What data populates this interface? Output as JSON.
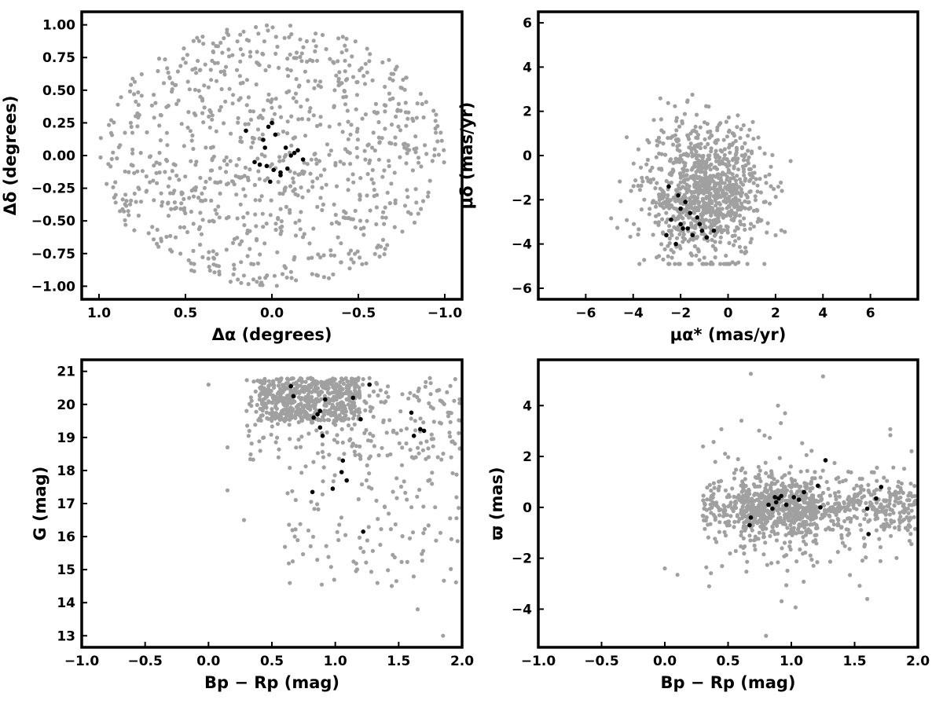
{
  "colors": {
    "field": "#a0a0a0",
    "members": "#000000",
    "axes": "#000000"
  },
  "chart_data": [
    {
      "type": "scatter",
      "xlabel": "Δα (degrees)",
      "ylabel": "Δδ (degrees)",
      "xlim": [
        1.1,
        -1.1
      ],
      "ylim": [
        -1.1,
        1.1
      ],
      "x_reversed": true,
      "xticks": [
        1.0,
        0.5,
        0.0,
        -0.5,
        -1.0
      ],
      "xtick_labels": [
        "1.0",
        "0.5",
        "0.0",
        "−0.5",
        "−1.0"
      ],
      "yticks": [
        1.0,
        0.75,
        0.5,
        0.25,
        0.0,
        -0.25,
        -0.5,
        -0.75,
        -1.0
      ],
      "ytick_labels": [
        "1.00",
        "0.75",
        "0.50",
        "0.25",
        "0.00",
        "−0.25",
        "−0.50",
        "−0.75",
        "−1.00"
      ],
      "series": [
        {
          "color": "#a0a0a0",
          "distribution": "approximately uniform within a circle of radius 1 degree centred on (0,0), about 1000 stars",
          "x": [],
          "y": []
        },
        {
          "color": "#000000",
          "x": [
            0.15,
            0.1,
            0.05,
            0.04,
            0.02,
            0.0,
            -0.02,
            -0.05,
            -0.08,
            -0.11,
            -0.13,
            -0.15,
            -0.18,
            -0.01,
            0.03,
            -0.05,
            0.07,
            0.01,
            -0.09
          ],
          "y": [
            0.19,
            -0.05,
            0.12,
            0.06,
            0.22,
            0.25,
            0.16,
            -0.13,
            0.06,
            0.0,
            0.02,
            0.04,
            -0.03,
            -0.11,
            -0.08,
            -0.15,
            -0.07,
            -0.2,
            -0.1
          ]
        }
      ]
    },
    {
      "type": "scatter",
      "xlabel": "μα* (mas/yr)",
      "ylabel": "μδ (mas/yr)",
      "xlim": [
        -8,
        8
      ],
      "ylim": [
        -6.5,
        6.5
      ],
      "xticks": [
        -6,
        -4,
        -2,
        0,
        2,
        4,
        6
      ],
      "xtick_labels": [
        "−6",
        "−4",
        "−2",
        "0",
        "2",
        "4",
        "6"
      ],
      "yticks": [
        6,
        4,
        2,
        0,
        -2,
        -4,
        -6
      ],
      "ytick_labels": [
        "6",
        "4",
        "2",
        "0",
        "−2",
        "−4",
        "−6"
      ],
      "series": [
        {
          "color": "#a0a0a0",
          "distribution": "dense cloud centred near (-1.0, -1.7), spread roughly -5 to 4.8 in x and -4.9 to 4.1 in y",
          "x": [],
          "y": []
        },
        {
          "color": "#000000",
          "x": [
            -2.5,
            -2.1,
            -2.4,
            -2.0,
            -1.9,
            -1.6,
            -2.2,
            -1.7,
            -1.5,
            -1.3,
            -1.1,
            -0.9,
            -0.6,
            -2.6,
            -1.8,
            -1.2,
            -2.0
          ],
          "y": [
            -1.4,
            -1.8,
            -2.9,
            -3.1,
            -3.3,
            -2.6,
            -4.0,
            -3.3,
            -3.6,
            -2.8,
            -3.4,
            -3.7,
            -3.4,
            -3.6,
            -2.1,
            -3.1,
            -2.4
          ]
        }
      ]
    },
    {
      "type": "scatter",
      "xlabel": "Bp − Rp (mag)",
      "ylabel": "G (mag)",
      "xlim": [
        -1.0,
        2.0
      ],
      "ylim": [
        12.65,
        21.35
      ],
      "xticks": [
        -1.0,
        -0.5,
        0.0,
        0.5,
        1.0,
        1.5,
        2.0
      ],
      "xtick_labels": [
        "−1.0",
        "−0.5",
        "0.0",
        "0.5",
        "1.0",
        "1.5",
        "2.0"
      ],
      "yticks": [
        21,
        20,
        19,
        18,
        17,
        16,
        15,
        14,
        13
      ],
      "ytick_labels": [
        "21",
        "20",
        "19",
        "18",
        "17",
        "16",
        "15",
        "14",
        "13"
      ],
      "series": [
        {
          "color": "#a0a0a0",
          "distribution": "colour-magnitude diagram; dense band at G 19-21 for Bp-Rp 0.3-2.0, sparse down to G 13",
          "x": [],
          "y": []
        },
        {
          "color": "#000000",
          "x": [
            0.65,
            0.67,
            0.83,
            0.86,
            0.88,
            0.92,
            0.88,
            0.9,
            0.82,
            1.06,
            1.05,
            1.09,
            0.98,
            1.14,
            1.2,
            1.22,
            1.27,
            1.6,
            1.62,
            1.67,
            1.7
          ],
          "y": [
            20.55,
            20.25,
            19.6,
            19.7,
            19.8,
            20.15,
            19.3,
            19.05,
            17.35,
            18.3,
            17.95,
            17.7,
            17.45,
            20.2,
            19.55,
            16.15,
            20.6,
            19.75,
            19.05,
            19.25,
            19.2
          ]
        }
      ]
    },
    {
      "type": "scatter",
      "xlabel": "Bp − Rp (mag)",
      "ylabel": "ϖ (mas)",
      "xlim": [
        -1.0,
        2.0
      ],
      "ylim": [
        -5.5,
        5.8
      ],
      "xticks": [
        -1.0,
        -0.5,
        0.0,
        0.5,
        1.0,
        1.5,
        2.0
      ],
      "xtick_labels": [
        "−1.0",
        "−0.5",
        "0.0",
        "0.5",
        "1.0",
        "1.5",
        "2.0"
      ],
      "yticks": [
        4,
        2,
        0,
        -2,
        -4
      ],
      "ytick_labels": [
        "4",
        "2",
        "0",
        "−2",
        "−4"
      ],
      "series": [
        {
          "color": "#a0a0a0",
          "distribution": "horizontal band around parallax 0 for Bp-Rp 0.1-2.0, scatter from -5 to 5.3",
          "x": [],
          "y": []
        },
        {
          "color": "#000000",
          "x": [
            0.68,
            0.67,
            0.82,
            0.85,
            0.87,
            0.88,
            0.9,
            0.92,
            0.96,
            1.02,
            1.06,
            1.1,
            1.21,
            1.23,
            1.27,
            1.6,
            1.61,
            1.67,
            1.71
          ],
          "y": [
            -0.4,
            -0.7,
            0.1,
            -0.05,
            0.4,
            0.2,
            0.35,
            0.45,
            0.1,
            0.4,
            0.3,
            0.6,
            0.85,
            0.0,
            1.85,
            -0.05,
            -1.05,
            0.35,
            0.8
          ]
        }
      ]
    }
  ]
}
